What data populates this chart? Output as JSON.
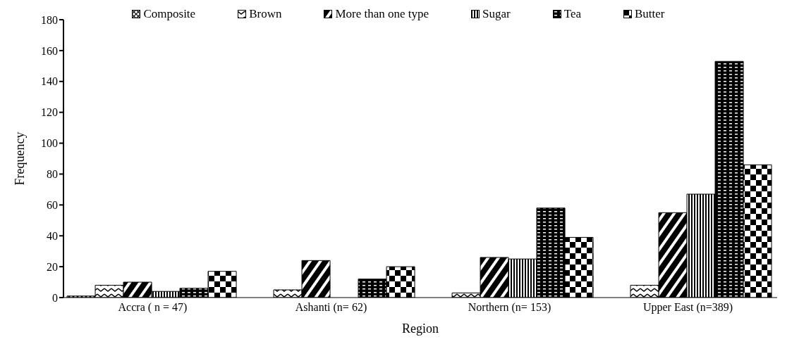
{
  "chart_data": {
    "type": "bar",
    "xlabel": "Region",
    "ylabel": "Frequency",
    "categories": [
      "Accra ( n = 47)",
      "Ashanti (n= 62)",
      "Northern (n= 153)",
      "Upper East (n=389)"
    ],
    "series": [
      {
        "name": "Composite",
        "color": "#000000",
        "values": [
          1,
          0,
          0,
          0
        ]
      },
      {
        "name": "Brown",
        "color": "#000000",
        "values": [
          8,
          5,
          3,
          8
        ]
      },
      {
        "name": "More  than one type",
        "color": "#000000",
        "values": [
          10,
          24,
          26,
          55
        ]
      },
      {
        "name": "Sugar",
        "color": "#000000",
        "values": [
          4,
          0,
          25,
          67
        ]
      },
      {
        "name": "Tea",
        "color": "#000000",
        "values": [
          6,
          12,
          58,
          153
        ]
      },
      {
        "name": "Butter",
        "color": "#000000",
        "values": [
          17,
          20,
          39,
          86
        ]
      }
    ],
    "ylim": [
      0,
      180
    ],
    "yticks": [
      0,
      20,
      40,
      60,
      80,
      100,
      120,
      140,
      160,
      180
    ],
    "grid": false,
    "legend": "top"
  }
}
